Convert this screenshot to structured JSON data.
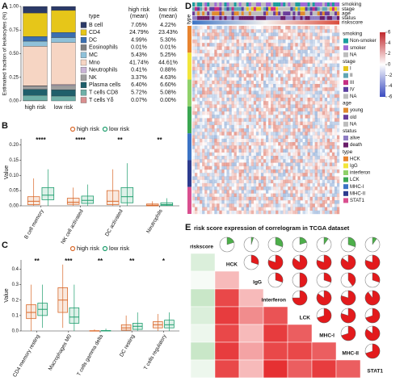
{
  "chart_data": [
    {
      "type": "stacked_bar",
      "panel_label": "A",
      "y_label": "Estimated fraction of leukocytes (%)",
      "legend_title": "type",
      "column_headers": [
        [
          "high risk",
          "(mean)"
        ],
        [
          "low risk",
          "(mean)"
        ]
      ],
      "categories": [
        "high risk",
        "low risk"
      ],
      "ylim": [
        0,
        1
      ],
      "yticks": [
        {
          "value": 0,
          "label": "0.00"
        },
        0.25,
        {
          "value": 0.5,
          "label": "0.50"
        },
        0.75,
        {
          "value": 1,
          "label": "1.00"
        }
      ],
      "series": [
        {
          "name": "B cell",
          "color": "#2b3a67",
          "values": [
            0.0705,
            0.0422
          ],
          "value_labels": [
            "7.05%",
            "4.22%"
          ]
        },
        {
          "name": "CD4",
          "color": "#e6c619",
          "values": [
            0.2479,
            0.2343
          ],
          "value_labels": [
            "24.79%",
            "23.43%"
          ]
        },
        {
          "name": "DC",
          "color": "#3b6fb0",
          "values": [
            0.0499,
            0.053
          ],
          "value_labels": [
            "4.99%",
            "5.30%"
          ]
        },
        {
          "name": "Eosinophils",
          "color": "#7f7f7f",
          "values": [
            0.0001,
            0.0001
          ],
          "value_labels": [
            "0.01%",
            "0.01%"
          ]
        },
        {
          "name": "MC",
          "color": "#8fc1d9",
          "values": [
            0.0543,
            0.0525
          ],
          "value_labels": [
            "5.43%",
            "5.25%"
          ]
        },
        {
          "name": "Mno",
          "color": "#f6d5c3",
          "values": [
            0.4174,
            0.4461
          ],
          "value_labels": [
            "41.74%",
            "44.61%"
          ]
        },
        {
          "name": "Neutrophils",
          "color": "#c9b4d6",
          "values": [
            0.0041,
            0.0088
          ],
          "value_labels": [
            "0.41%",
            "0.88%"
          ]
        },
        {
          "name": "NK",
          "color": "#9e9e9e",
          "values": [
            0.0337,
            0.0463
          ],
          "value_labels": [
            "3.37%",
            "4.63%"
          ]
        },
        {
          "name": "Plasma cells",
          "color": "#1f5f6b",
          "values": [
            0.064,
            0.066
          ],
          "value_labels": [
            "6.40%",
            "6.60%"
          ]
        },
        {
          "name": "T cells CD8",
          "color": "#6fb0a8",
          "values": [
            0.0572,
            0.0508
          ],
          "value_labels": [
            "5.72%",
            "5.08%"
          ]
        },
        {
          "name": "T cells Yδ",
          "color": "#d98f8f",
          "values": [
            0.0007,
            0
          ],
          "value_labels": [
            "0.07%",
            "0.00%"
          ]
        }
      ]
    },
    {
      "type": "box",
      "panel_label": "B",
      "y_label": "Value",
      "categories": [
        "B cell memory",
        "NK cell activated",
        "DC activated",
        "Neutrophils"
      ],
      "annotations": [
        "****",
        "****",
        "**",
        "**"
      ],
      "ylim": [
        0,
        0.22
      ],
      "yticks": [
        {
          "value": 0,
          "label": "0.00"
        },
        0.05,
        {
          "value": 0.1,
          "label": "0.10"
        },
        0.15,
        {
          "value": 0.2,
          "label": "0.20"
        }
      ],
      "series": [
        {
          "name": "high risk",
          "color": "#d9692b",
          "stats": [
            {
              "min": 0,
              "q1": 0.004,
              "median": 0.015,
              "q3": 0.03,
              "max": 0.09
            },
            {
              "min": 0,
              "q1": 0.005,
              "median": 0.012,
              "q3": 0.025,
              "max": 0.06
            },
            {
              "min": 0,
              "q1": 0.004,
              "median": 0.015,
              "q3": 0.05,
              "max": 0.12
            },
            {
              "min": 0,
              "q1": 0,
              "median": 0.002,
              "q3": 0.006,
              "max": 0.015
            }
          ]
        },
        {
          "name": "low risk",
          "color": "#1f9e6e",
          "stats": [
            {
              "min": 0,
              "q1": 0.02,
              "median": 0.035,
              "q3": 0.06,
              "max": 0.12
            },
            {
              "min": 0,
              "q1": 0.008,
              "median": 0.018,
              "q3": 0.032,
              "max": 0.07
            },
            {
              "min": 0,
              "q1": 0.01,
              "median": 0.03,
              "q3": 0.06,
              "max": 0.14
            },
            {
              "min": 0,
              "q1": 0.001,
              "median": 0.004,
              "q3": 0.01,
              "max": 0.025
            }
          ]
        }
      ]
    },
    {
      "type": "box",
      "panel_label": "C",
      "y_label": "Value",
      "categories": [
        "CD4 memory resting",
        "Macrophages M0",
        "T cells gamma delta",
        "DC resting",
        "T cells regulatory"
      ],
      "annotations": [
        "**",
        "***",
        "**",
        "**",
        "*"
      ],
      "ylim": [
        0,
        0.46
      ],
      "yticks": [
        {
          "value": 0,
          "label": "0.0"
        },
        0.1,
        0.2,
        0.3,
        0.4
      ],
      "series": [
        {
          "name": "high risk",
          "color": "#d9692b",
          "stats": [
            {
              "min": 0,
              "q1": 0.08,
              "median": 0.12,
              "q3": 0.17,
              "max": 0.3
            },
            {
              "min": 0.02,
              "q1": 0.12,
              "median": 0.2,
              "q3": 0.28,
              "max": 0.43
            },
            {
              "min": 0,
              "q1": 0,
              "median": 0,
              "q3": 0.002,
              "max": 0.01
            },
            {
              "min": 0,
              "q1": 0.005,
              "median": 0.02,
              "q3": 0.04,
              "max": 0.1
            },
            {
              "min": 0,
              "q1": 0.02,
              "median": 0.04,
              "q3": 0.06,
              "max": 0.11
            }
          ]
        },
        {
          "name": "low risk",
          "color": "#1f9e6e",
          "stats": [
            {
              "min": 0.02,
              "q1": 0.1,
              "median": 0.14,
              "q3": 0.18,
              "max": 0.3
            },
            {
              "min": 0,
              "q1": 0.05,
              "median": 0.09,
              "q3": 0.15,
              "max": 0.3
            },
            {
              "min": 0,
              "q1": 0,
              "median": 0,
              "q3": 0.003,
              "max": 0.015
            },
            {
              "min": 0,
              "q1": 0.01,
              "median": 0.03,
              "q3": 0.05,
              "max": 0.12
            },
            {
              "min": 0,
              "q1": 0.02,
              "median": 0.04,
              "q3": 0.07,
              "max": 0.12
            }
          ]
        }
      ]
    },
    {
      "type": "heatmap",
      "panel_label": "D",
      "row_annotation_label": "type",
      "tracks": [
        "smoking",
        "stage",
        "age",
        "status",
        "riskscore"
      ],
      "colorbar": {
        "ticks": [
          6,
          4,
          2,
          0,
          -2,
          -4,
          -6
        ],
        "lim": [
          -6,
          6
        ],
        "colors": [
          "#3b4cc0",
          "#ffffff",
          "#c0282d"
        ]
      },
      "legends": [
        {
          "title": "smoking",
          "items": [
            {
              "label": "Non-smoker",
              "color": "#1b9e9e"
            },
            {
              "label": "smoker",
              "color": "#9e6bd6"
            },
            {
              "label": "NA",
              "color": "#bdbdbd"
            }
          ]
        },
        {
          "title": "stage",
          "items": [
            {
              "label": "I",
              "color": "#e5c51a"
            },
            {
              "label": "II",
              "color": "#60a6b4"
            },
            {
              "label": "III",
              "color": "#c62f83"
            },
            {
              "label": "IV",
              "color": "#5b3fa0"
            },
            {
              "label": "NA",
              "color": "#bdbdbd"
            }
          ]
        },
        {
          "title": "age",
          "items": [
            {
              "label": "young",
              "color": "#e08a2d"
            },
            {
              "label": "old",
              "color": "#6a3d9a"
            },
            {
              "label": "NA",
              "color": "#bdbdbd"
            }
          ]
        },
        {
          "title": "status",
          "items": [
            {
              "label": "alive",
              "color": "#8e7cc3"
            },
            {
              "label": "death",
              "color": "#6a1e6a"
            }
          ]
        },
        {
          "title": "type",
          "items": [
            {
              "label": "HCK",
              "color": "#e8842f"
            },
            {
              "label": "IgG",
              "color": "#f2e53b"
            },
            {
              "label": "interferon",
              "color": "#8fd16a"
            },
            {
              "label": "LCK",
              "color": "#3aa652"
            },
            {
              "label": "MHC-I",
              "color": "#3b73c4"
            },
            {
              "label": "MHC-II",
              "color": "#2d3b8e"
            },
            {
              "label": "STAT1",
              "color": "#d94f8f"
            }
          ]
        }
      ]
    },
    {
      "type": "correlogram",
      "panel_label": "E",
      "title": "risk score expression of correlogram in TCGA dataset",
      "variables": [
        "riskscore",
        "HCK",
        "IgG",
        "interferon",
        "LCK",
        "MHC-I",
        "MHC-II",
        "STAT1"
      ],
      "positive_color": "#e31a1c",
      "negative_color": "#4daf4a",
      "correlations": [
        [],
        [
          -0.2
        ],
        [
          -0.05,
          0.3
        ],
        [
          -0.3,
          0.8,
          0.3
        ],
        [
          -0.2,
          0.85,
          0.5,
          0.75
        ],
        [
          -0.1,
          0.8,
          0.3,
          0.85,
          0.7
        ],
        [
          -0.3,
          0.85,
          0.4,
          0.8,
          0.8,
          0.7
        ],
        [
          -0.1,
          0.8,
          0.3,
          0.9,
          0.7,
          0.85,
          0.7
        ]
      ]
    }
  ]
}
